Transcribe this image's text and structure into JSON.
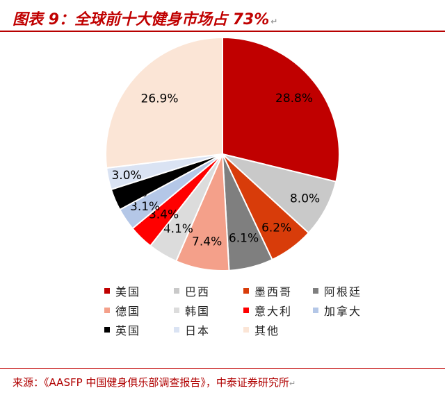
{
  "header": {
    "title": "图表 9：全球前十大健身市场占 73%",
    "return_mark": "↵"
  },
  "chart_data": {
    "type": "pie",
    "title": "",
    "categories": [
      "美国",
      "巴西",
      "墨西哥",
      "阿根廷",
      "德国",
      "韩国",
      "意大利",
      "加拿大",
      "英国",
      "日本",
      "其他"
    ],
    "values": [
      28.8,
      8.0,
      6.2,
      6.1,
      7.4,
      4.1,
      3.4,
      3.1,
      3.0,
      3.0,
      26.9
    ],
    "value_labels": [
      "28.8%",
      "8.0%",
      "6.2%",
      "6.1%",
      "7.4%",
      "4.1%",
      "3.4%",
      "3.1%",
      "3.0%",
      "3.0%",
      "26.9%"
    ],
    "colors": [
      "#c00000",
      "#c9c9c9",
      "#d83c0a",
      "#7f7f7f",
      "#f4a08a",
      "#dcdcdc",
      "#ff0000",
      "#b4c7e7",
      "#000000",
      "#dae3f3",
      "#fbe5d6"
    ],
    "label_colors": [
      "#000000",
      "#000000",
      "#000000",
      "#000000",
      "#000000",
      "#000000",
      "#000000",
      "#000000",
      "#000000",
      "#000000",
      "#000000"
    ],
    "legend_position": "bottom"
  },
  "source": {
    "text": "来源：《AASFP 中国健身俱乐部调查报告》，中泰证券研究所",
    "return_mark": "↵"
  }
}
